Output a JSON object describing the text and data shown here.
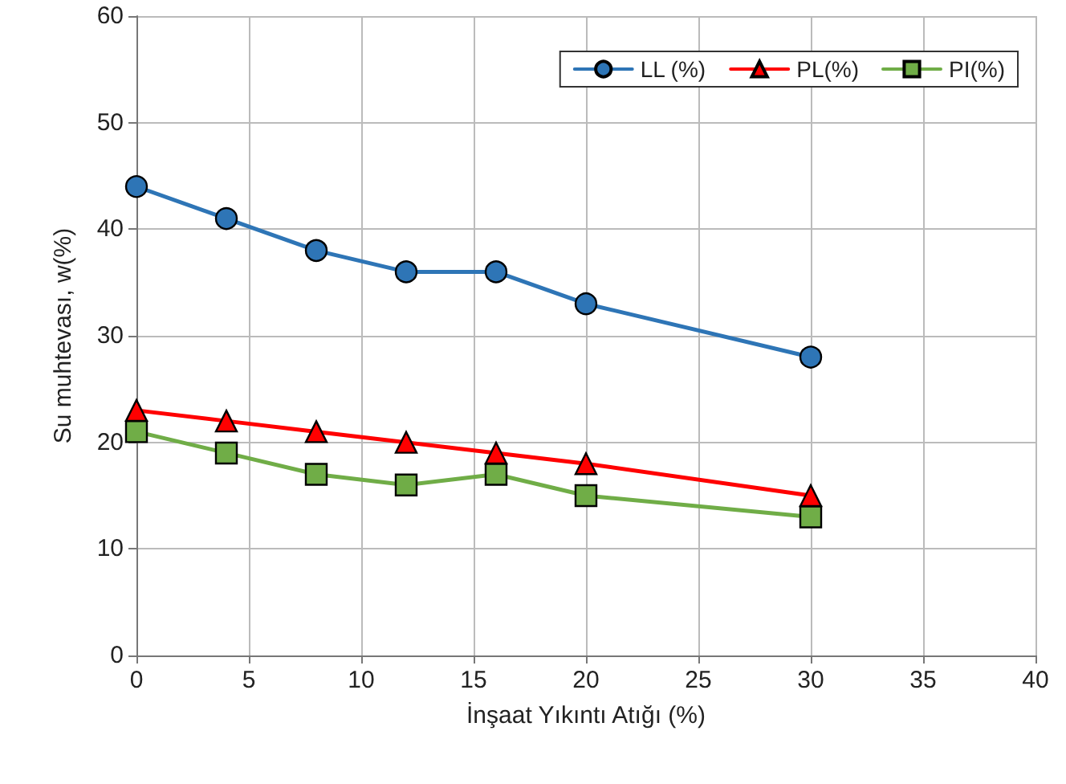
{
  "chart_data": {
    "type": "line",
    "xlabel": "İnşaat Yıkıntı Atığı (%)",
    "ylabel": "Su muhtevası, w(%)",
    "x": [
      0,
      4,
      8,
      12,
      16,
      20,
      30
    ],
    "xlim": [
      0,
      40
    ],
    "xticks": [
      0,
      5,
      10,
      15,
      20,
      25,
      30,
      35,
      40
    ],
    "ylim": [
      0,
      60
    ],
    "yticks": [
      0,
      10,
      20,
      30,
      40,
      50,
      60
    ],
    "grid": true,
    "legend": "top right",
    "line_style": "solid",
    "series": [
      {
        "name": "LL (%)",
        "color": "#2e75b6",
        "marker": "circle",
        "values": [
          44,
          41,
          38,
          36,
          36,
          33,
          28
        ]
      },
      {
        "name": "PL(%)",
        "color": "#ff0000",
        "marker": "triangle",
        "values": [
          23,
          22,
          21,
          20,
          19,
          18,
          15
        ]
      },
      {
        "name": "PI(%)",
        "color": "#70ad47",
        "marker": "square",
        "values": [
          21,
          19,
          17,
          16,
          17,
          15,
          13
        ]
      }
    ]
  }
}
